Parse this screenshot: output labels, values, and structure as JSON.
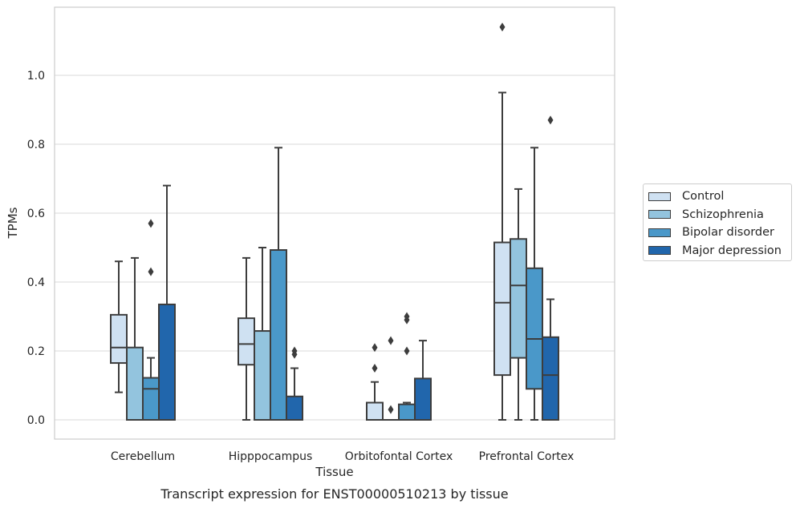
{
  "chart_data": {
    "type": "box",
    "title": "",
    "caption": "Transcript expression for ENST00000510213 by tissue",
    "xlabel": "Tissue",
    "ylabel": "TPMs",
    "ylim": [
      -0.055,
      1.2
    ],
    "yticks": [
      "0.0",
      "0.2",
      "0.4",
      "0.6",
      "0.8",
      "1.0"
    ],
    "grid": "horizontal",
    "legend_position": "right",
    "categories": [
      "Cerebellum",
      "Hipppocampus",
      "Orbitofontal Cortex",
      "Prefrontal Cortex"
    ],
    "series": [
      {
        "name": "Control",
        "color": "#cfe1f2",
        "boxes": [
          {
            "whislo": 0.08,
            "q1": 0.165,
            "med": 0.21,
            "q3": 0.305,
            "whishi": 0.46,
            "fliers": []
          },
          {
            "whislo": 0.0,
            "q1": 0.16,
            "med": 0.22,
            "q3": 0.295,
            "whishi": 0.47,
            "fliers": []
          },
          {
            "whislo": 0.0,
            "q1": 0.0,
            "med": 0.0,
            "q3": 0.05,
            "whishi": 0.11,
            "fliers": [
              0.15,
              0.21
            ]
          },
          {
            "whislo": 0.0,
            "q1": 0.13,
            "med": 0.34,
            "q3": 0.515,
            "whishi": 0.95,
            "fliers": [
              1.14
            ]
          }
        ]
      },
      {
        "name": "Schizophrenia",
        "color": "#93c4de",
        "boxes": [
          {
            "whislo": 0.0,
            "q1": 0.0,
            "med": 0.0,
            "q3": 0.21,
            "whishi": 0.47,
            "fliers": []
          },
          {
            "whislo": 0.0,
            "q1": 0.0,
            "med": 0.0,
            "q3": 0.258,
            "whishi": 0.5,
            "fliers": []
          },
          {
            "whislo": 0.0,
            "q1": 0.0,
            "med": 0.0,
            "q3": 0.0,
            "whishi": 0.0,
            "fliers": [
              0.03,
              0.23
            ]
          },
          {
            "whislo": 0.0,
            "q1": 0.18,
            "med": 0.39,
            "q3": 0.525,
            "whishi": 0.67,
            "fliers": []
          }
        ]
      },
      {
        "name": "Bipolar disorder",
        "color": "#4a98c9",
        "boxes": [
          {
            "whislo": 0.0,
            "q1": 0.0,
            "med": 0.09,
            "q3": 0.122,
            "whishi": 0.18,
            "fliers": [
              0.43,
              0.57
            ]
          },
          {
            "whislo": 0.0,
            "q1": 0.0,
            "med": 0.0,
            "q3": 0.493,
            "whishi": 0.79,
            "fliers": []
          },
          {
            "whislo": 0.0,
            "q1": 0.0,
            "med": 0.0,
            "q3": 0.045,
            "whishi": 0.05,
            "fliers": [
              0.2,
              0.29,
              0.3
            ]
          },
          {
            "whislo": 0.0,
            "q1": 0.09,
            "med": 0.235,
            "q3": 0.44,
            "whishi": 0.79,
            "fliers": []
          }
        ]
      },
      {
        "name": "Major depression",
        "color": "#2166ac",
        "boxes": [
          {
            "whislo": 0.0,
            "q1": 0.0,
            "med": 0.0,
            "q3": 0.335,
            "whishi": 0.68,
            "fliers": []
          },
          {
            "whislo": 0.0,
            "q1": 0.0,
            "med": 0.0,
            "q3": 0.068,
            "whishi": 0.15,
            "fliers": [
              0.19,
              0.2
            ]
          },
          {
            "whislo": 0.0,
            "q1": 0.0,
            "med": 0.0,
            "q3": 0.12,
            "whishi": 0.23,
            "fliers": []
          },
          {
            "whislo": 0.0,
            "q1": 0.0,
            "med": 0.13,
            "q3": 0.24,
            "whishi": 0.35,
            "fliers": [
              0.87
            ]
          }
        ]
      }
    ]
  }
}
